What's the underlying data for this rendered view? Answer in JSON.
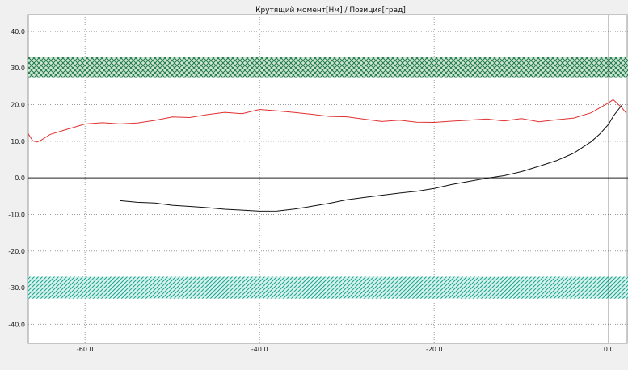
{
  "chart_data": {
    "type": "line",
    "title": "Крутящий момент[Нм] / Позиция[град]",
    "xlabel": "",
    "ylabel": "",
    "xlim": [
      -66.5,
      2.2
    ],
    "ylim": [
      -45.2,
      44.6
    ],
    "x_ticks": [
      -60,
      -40,
      -20,
      0
    ],
    "x_tick_labels": [
      "-60.0",
      "-40.0",
      "-20.0",
      "0.0"
    ],
    "y_ticks": [
      40,
      30,
      20,
      10,
      0,
      -10,
      -20,
      -30,
      -40
    ],
    "y_tick_labels": [
      "40.0",
      "30.0",
      "20.0",
      "10.0",
      "0.0",
      "-10.0",
      "-20.0",
      "-30.0",
      "-40.0"
    ],
    "grid": true,
    "bands": [
      {
        "y_from": 27.5,
        "y_to": 33.0,
        "style": "crosshatch",
        "color": "#2e8b57"
      },
      {
        "y_from": -33.0,
        "y_to": -27.0,
        "style": "diagonal-hatch",
        "color": "#20b2aa"
      }
    ],
    "series": [
      {
        "color": "#e03030",
        "x": [
          -66.5,
          -66,
          -65.5,
          -65,
          -64,
          -62,
          -60,
          -58,
          -56,
          -54,
          -52,
          -50,
          -48,
          -46,
          -44,
          -42,
          -40,
          -38,
          -36,
          -34,
          -32,
          -30,
          -28,
          -26,
          -24,
          -22,
          -20,
          -18,
          -16,
          -14,
          -12,
          -10,
          -8,
          -6,
          -4,
          -2,
          -1,
          0,
          0.5,
          1,
          1.5,
          2
        ],
        "y": [
          12,
          10,
          9.5,
          10,
          11.5,
          13,
          14.5,
          15,
          14.8,
          15.2,
          16,
          17,
          16.8,
          17.5,
          18,
          17.5,
          18.5,
          18,
          17.5,
          17,
          16.5,
          16.5,
          16,
          15.5,
          16,
          15.5,
          15.5,
          15.8,
          16,
          16.2,
          15.5,
          16,
          15,
          15.5,
          16,
          17.5,
          19,
          20.5,
          21.5,
          20.5,
          19.5,
          18
        ]
      },
      {
        "color": "#101010",
        "x": [
          -56,
          -54,
          -52,
          -50,
          -48,
          -46,
          -44,
          -42,
          -40,
          -38,
          -36,
          -34,
          -32,
          -30,
          -28,
          -26,
          -24,
          -22,
          -20,
          -18,
          -16,
          -14,
          -12,
          -10,
          -8,
          -6,
          -4,
          -2,
          -1,
          0,
          0.5,
          1,
          1.5
        ],
        "y": [
          -6.5,
          -7,
          -7.2,
          -7.8,
          -8,
          -8.2,
          -8.5,
          -8.6,
          -8.8,
          -8.7,
          -8.2,
          -7.5,
          -6.8,
          -6,
          -5.5,
          -5,
          -4.5,
          -4,
          -3.2,
          -2,
          -1,
          0,
          0.8,
          2,
          3.5,
          5,
          7,
          10,
          12,
          14.5,
          16.5,
          18,
          19.5
        ]
      }
    ]
  }
}
